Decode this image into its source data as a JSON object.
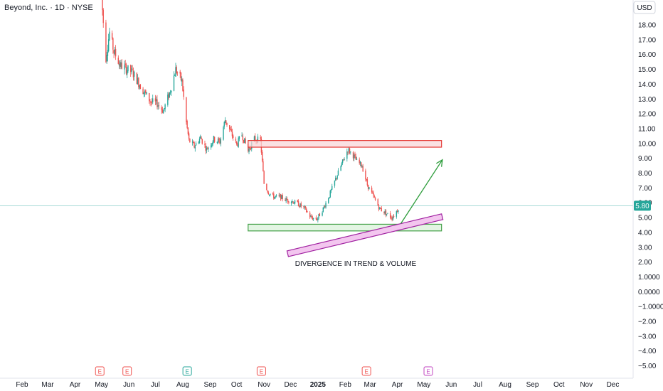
{
  "header": {
    "title": "Beyond, Inc. · 1D · NYSE",
    "currency": "USD"
  },
  "price_label": "5.80",
  "annotation_text": "DIVERGENCE IN TREND & VOLUME",
  "colors": {
    "up": "#26a69a",
    "down": "#ef5350",
    "resistance_fill": "#f8d7da",
    "resistance_stroke": "#e53935",
    "support_fill": "#d9f2d9",
    "support_stroke": "#43a047",
    "channel_fill": "#f3c6ef",
    "channel_stroke": "#a020a0",
    "arrow": "#2e9d3c",
    "price_line": "#26a69a"
  },
  "earnings_markers": [
    {
      "label": "E",
      "date": "2024-04-29",
      "color": "#ef5350"
    },
    {
      "label": "E",
      "date": "2024-05-30",
      "color": "#ef5350"
    },
    {
      "label": "E",
      "date": "2024-08-06",
      "color": "#26a69a"
    },
    {
      "label": "E",
      "date": "2024-10-29",
      "color": "#ef5350"
    },
    {
      "label": "E",
      "date": "2025-02-25",
      "color": "#ef5350"
    },
    {
      "label": "E",
      "date": "2025-05-06",
      "color": "#c045c0"
    }
  ],
  "chart_data": {
    "type": "candlestick",
    "title": "Beyond, Inc. · 1D · NYSE",
    "currency": "USD",
    "x_axis": {
      "type": "date",
      "tick_labels": [
        "Feb",
        "Mar",
        "Apr",
        "May",
        "Jun",
        "Jul",
        "Aug",
        "Sep",
        "Oct",
        "Nov",
        "Dec",
        "2025",
        "Feb",
        "Mar",
        "Apr",
        "May",
        "Jun",
        "Jul",
        "Aug",
        "Sep",
        "Oct",
        "Nov",
        "Dec"
      ],
      "tick_dates": [
        "2024-02-01",
        "2024-03-01",
        "2024-04-01",
        "2024-05-01",
        "2024-06-01",
        "2024-07-01",
        "2024-08-01",
        "2024-09-01",
        "2024-10-01",
        "2024-11-01",
        "2024-12-01",
        "2025-01-01",
        "2025-02-01",
        "2025-03-01",
        "2025-04-01",
        "2025-05-01",
        "2025-06-01",
        "2025-07-01",
        "2025-08-01",
        "2025-09-01",
        "2025-10-01",
        "2025-11-01",
        "2025-12-01"
      ]
    },
    "y_axis": {
      "tick_labels": [
        "18.00",
        "17.00",
        "16.00",
        "15.00",
        "14.00",
        "13.00",
        "12.00",
        "11.00",
        "10.00",
        "9.00",
        "8.00",
        "7.00",
        "6.00",
        "5.00",
        "4.00",
        "3.00",
        "2.00",
        "1.0000",
        "0.0000",
        "−1.0000",
        "−2.00",
        "−3.00",
        "−4.00",
        "−5.00"
      ],
      "tick_values": [
        18,
        17,
        16,
        15,
        14,
        13,
        12,
        11,
        10,
        9,
        8,
        7,
        6,
        5,
        4,
        3,
        2,
        1,
        0,
        -1,
        -2,
        -3,
        -4,
        -5
      ],
      "range": [
        -5.5,
        19.2
      ]
    },
    "grid": false,
    "last_price": 5.8,
    "price_path": [
      [
        "2024-05-01",
        19.8
      ],
      [
        "2024-05-03",
        18.2
      ],
      [
        "2024-05-06",
        15.8
      ],
      [
        "2024-05-10",
        17.5
      ],
      [
        "2024-05-15",
        16.2
      ],
      [
        "2024-05-22",
        15.3
      ],
      [
        "2024-05-30",
        15.0
      ],
      [
        "2024-06-05",
        14.8
      ],
      [
        "2024-06-12",
        14.1
      ],
      [
        "2024-06-19",
        13.4
      ],
      [
        "2024-06-26",
        12.8
      ],
      [
        "2024-07-03",
        12.7
      ],
      [
        "2024-07-10",
        12.2
      ],
      [
        "2024-07-17",
        13.4
      ],
      [
        "2024-07-24",
        15.0
      ],
      [
        "2024-07-31",
        14.2
      ],
      [
        "2024-08-05",
        11.4
      ],
      [
        "2024-08-08",
        10.2
      ],
      [
        "2024-08-14",
        9.8
      ],
      [
        "2024-08-21",
        10.4
      ],
      [
        "2024-08-28",
        9.6
      ],
      [
        "2024-09-05",
        10.3
      ],
      [
        "2024-09-12",
        10.1
      ],
      [
        "2024-09-18",
        11.6
      ],
      [
        "2024-09-24",
        10.8
      ],
      [
        "2024-10-01",
        9.9
      ],
      [
        "2024-10-07",
        10.6
      ],
      [
        "2024-10-14",
        9.5
      ],
      [
        "2024-10-21",
        10.3
      ],
      [
        "2024-10-28",
        10.2
      ],
      [
        "2024-11-01",
        7.3
      ],
      [
        "2024-11-06",
        6.7
      ],
      [
        "2024-11-12",
        6.4
      ],
      [
        "2024-11-19",
        6.4
      ],
      [
        "2024-11-26",
        6.2
      ],
      [
        "2024-12-03",
        6.1
      ],
      [
        "2024-12-10",
        5.9
      ],
      [
        "2024-12-17",
        5.6
      ],
      [
        "2024-12-24",
        5.0
      ],
      [
        "2024-12-31",
        4.9
      ],
      [
        "2025-01-07",
        5.6
      ],
      [
        "2025-01-14",
        6.5
      ],
      [
        "2025-01-21",
        7.6
      ],
      [
        "2025-01-28",
        8.6
      ],
      [
        "2025-02-04",
        9.6
      ],
      [
        "2025-02-10",
        9.2
      ],
      [
        "2025-02-14",
        8.8
      ],
      [
        "2025-02-20",
        8.5
      ],
      [
        "2025-02-26",
        7.2
      ],
      [
        "2025-03-05",
        6.4
      ],
      [
        "2025-03-12",
        5.6
      ],
      [
        "2025-03-19",
        5.3
      ],
      [
        "2025-03-26",
        5.0
      ],
      [
        "2025-04-01",
        5.5
      ],
      [
        "2025-04-03",
        5.8
      ]
    ],
    "annotations": [
      {
        "type": "rectangle",
        "label": "resistance zone",
        "date_from": "2024-10-14",
        "date_to": "2025-05-21",
        "price_from": 9.75,
        "price_to": 10.2
      },
      {
        "type": "rectangle",
        "label": "support zone",
        "date_from": "2024-10-14",
        "date_to": "2025-05-21",
        "price_from": 4.1,
        "price_to": 4.55
      },
      {
        "type": "parallel_channel",
        "date_from": "2024-11-27",
        "date_to": "2025-05-21",
        "price_from": 2.75,
        "price_to": 5.25
      },
      {
        "type": "arrow",
        "date_from": "2025-04-05",
        "date_to": "2025-05-22",
        "price_from": 4.6,
        "price_to": 8.9
      },
      {
        "type": "horizontal_line",
        "price": 5.8
      }
    ]
  }
}
